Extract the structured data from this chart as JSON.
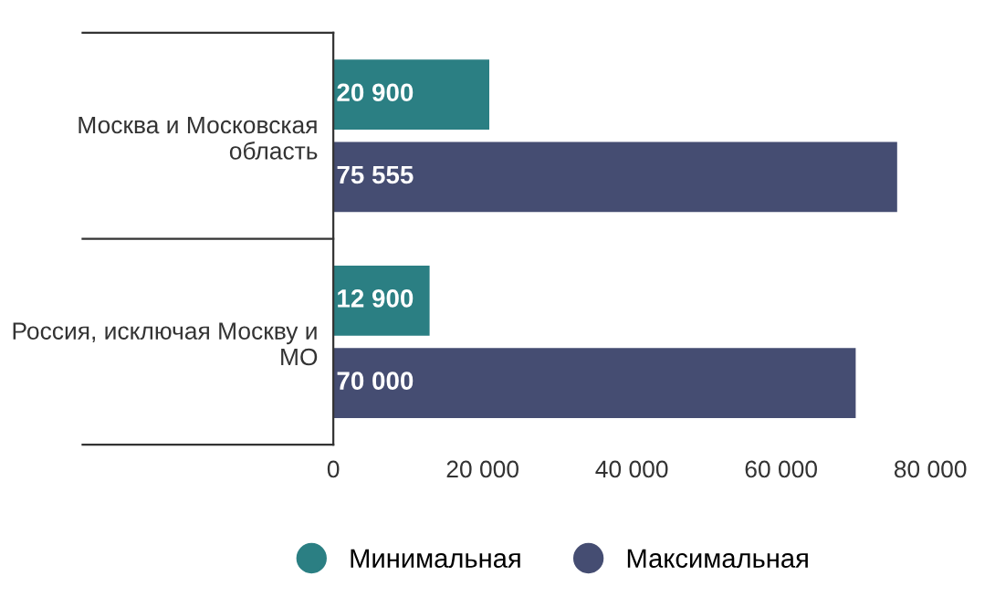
{
  "chart_data": {
    "type": "bar",
    "orientation": "horizontal",
    "categories": [
      "Москва и Московская область",
      "Россия, исключая Москву и МО"
    ],
    "series": [
      {
        "name": "Минимальная",
        "color": "#2b7f83",
        "values": [
          20900,
          12900
        ],
        "value_labels": [
          "20 900",
          "12 900"
        ]
      },
      {
        "name": "Максимальная",
        "color": "#454d72",
        "values": [
          75555,
          70000
        ],
        "value_labels": [
          "75 555",
          "70 000"
        ]
      }
    ],
    "xlim": [
      0,
      80000
    ],
    "xticks": [
      0,
      {
        "value": 20000,
        "label": "20 000"
      },
      {
        "value": 40000,
        "label": "40 000"
      },
      {
        "value": 60000,
        "label": "60 000"
      },
      {
        "value": 80000,
        "label": "80 000"
      }
    ],
    "grid": false,
    "legend": "bottom"
  }
}
